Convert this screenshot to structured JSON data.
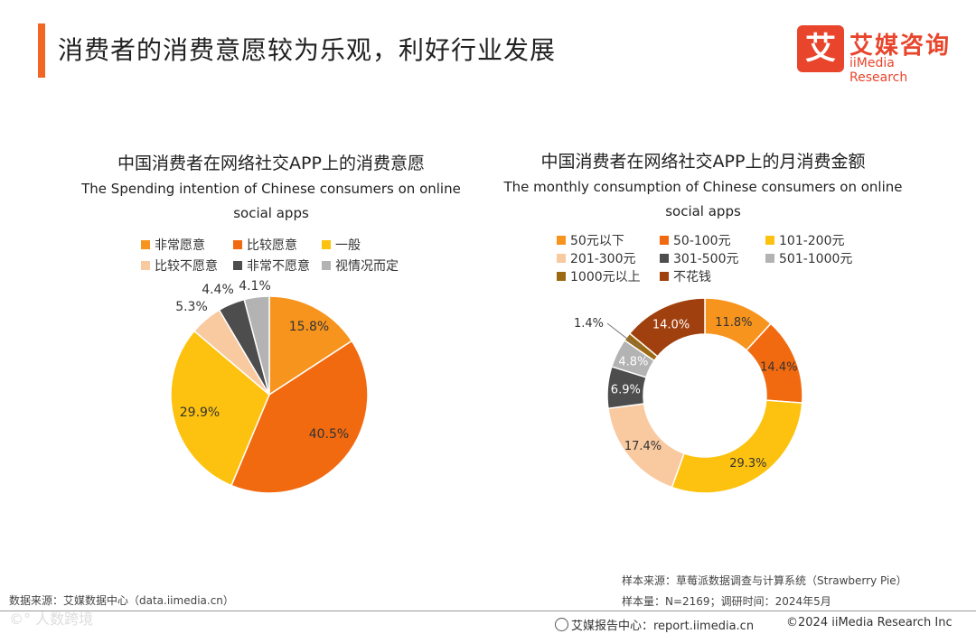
{
  "header": {
    "title": "消费者的消费意愿较为乐观，利好行业发展",
    "logo_mark": "艾",
    "logo_cn": "艾媒咨询",
    "logo_en": "iiMedia Research"
  },
  "chart_data": [
    {
      "type": "pie",
      "title": "中国消费者在网络社交APP上的消费意愿",
      "subtitle_line1": "The Spending intention of Chinese consumers on online",
      "subtitle_line2": "social apps",
      "legend": [
        "非常愿意",
        "比较愿意",
        "一般",
        "比较不愿意",
        "非常不愿意",
        "视情况而定"
      ],
      "values": [
        15.8,
        40.5,
        29.9,
        5.3,
        4.4,
        4.1
      ],
      "labels": [
        "15.8%",
        "40.5%",
        "29.9%",
        "5.3%",
        "4.4%",
        "4.1%"
      ],
      "colors": [
        "#f7941d",
        "#f26a10",
        "#fdc20f",
        "#f9c9a0",
        "#4d4d4d",
        "#b3b3b3"
      ]
    },
    {
      "type": "donut",
      "title": "中国消费者在网络社交APP上的月消费金额",
      "subtitle_line1": "The monthly consumption of Chinese consumers on online",
      "subtitle_line2": "social apps",
      "legend": [
        "50元以下",
        "50-100元",
        "101-200元",
        "201-300元",
        "301-500元",
        "501-1000元",
        "1000元以上",
        "不花钱"
      ],
      "values": [
        11.8,
        14.4,
        29.3,
        17.4,
        6.9,
        4.8,
        1.4,
        14.0
      ],
      "labels": [
        "11.8%",
        "14.4%",
        "29.3%",
        "17.4%",
        "6.9%",
        "4.8%",
        "1.4%",
        "14.0%"
      ],
      "colors": [
        "#f7941d",
        "#f26a10",
        "#fdc20f",
        "#f9c9a0",
        "#4d4d4d",
        "#b3b3b3",
        "#9c6a12",
        "#a0400f"
      ]
    }
  ],
  "footer": {
    "sample_source": "样本来源：草莓派数据调查与计算系统（Strawberry Pie）",
    "sample_size": "样本量：N=2169；调研时间：2024年5月",
    "data_source": "数据来源：艾媒数据中心（data.iimedia.cn）",
    "watermark": "©° 人数跨境",
    "report_center": "艾媒报告中心：report.iimedia.cn",
    "copyright": "©2024  iiMedia Research Inc"
  }
}
